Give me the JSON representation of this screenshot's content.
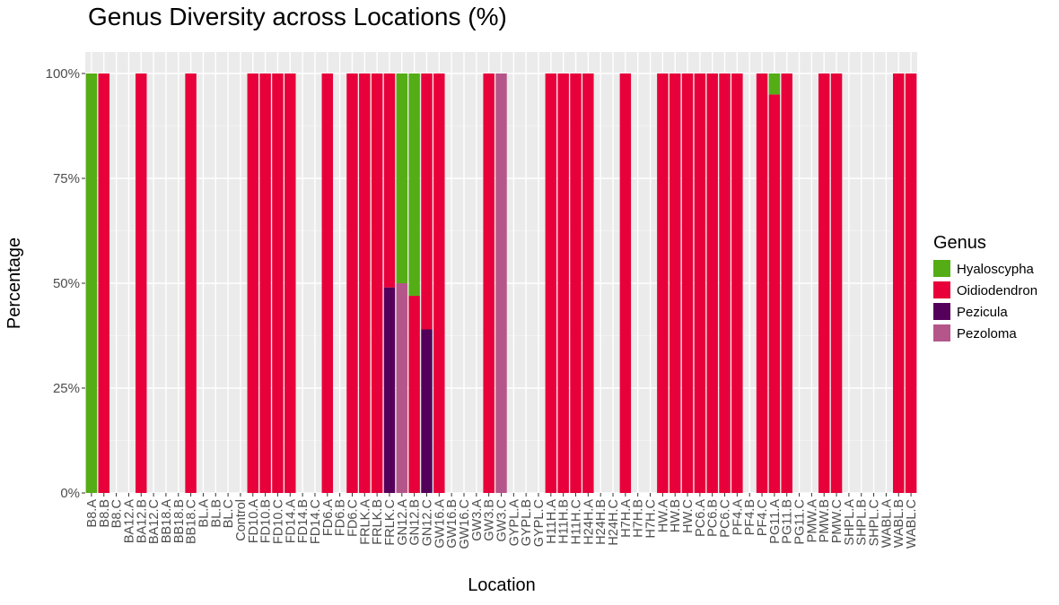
{
  "chart_data": {
    "type": "bar",
    "stacked": true,
    "title": "Genus Diversity across Locations (%)",
    "xlabel": "Location",
    "ylabel": "Percentage",
    "ylim": [
      0,
      100
    ],
    "yticks": [
      0,
      25,
      50,
      75,
      100
    ],
    "ytick_labels": [
      "0%",
      "25%",
      "50%",
      "75%",
      "100%"
    ],
    "grid": true,
    "legend": {
      "title": "Genus",
      "position": "right"
    },
    "categories": [
      "B8.A",
      "B8.B",
      "B8.C",
      "BA12.A",
      "BA12.B",
      "BA12.C",
      "BB18.A",
      "BB18.B",
      "BB18.C",
      "BL.A",
      "BL.B",
      "BL.C",
      "Control",
      "FD10.A",
      "FD10.B",
      "FD10.C",
      "FD14.A",
      "FD14.B",
      "FD14.C",
      "FD6.A",
      "FD6.B",
      "FD6.C",
      "FRLK.A",
      "FRLK.B",
      "FRLK.C",
      "GN12.A",
      "GN12.B",
      "GN12.C",
      "GW16.A",
      "GW16.B",
      "GW16.C",
      "GW3.A",
      "GW3.B",
      "GW3.C",
      "GYPL.A",
      "GYPL.B",
      "GYPL.C",
      "H11H.A",
      "H11H.B",
      "H11H.C",
      "H24H.A",
      "H24H.B",
      "H24H.C",
      "H7H.A",
      "H7H.B",
      "H7H.C",
      "HW.A",
      "HW.B",
      "HW.C",
      "PC6.A",
      "PC6.B",
      "PC6.C",
      "PF4.A",
      "PF4.B",
      "PF4.C",
      "PG11.A",
      "PG11.B",
      "PG11.C",
      "PMW.A",
      "PMW.B",
      "PMW.C",
      "SHPL.A",
      "SHPL.B",
      "SHPL.C",
      "WABL.A",
      "WABL.B",
      "WABL.C"
    ],
    "series": [
      {
        "name": "Pezoloma",
        "color": "#B5568A",
        "values": [
          0,
          0,
          0,
          0,
          0,
          0,
          0,
          0,
          0,
          0,
          0,
          0,
          0,
          0,
          0,
          0,
          0,
          0,
          0,
          0,
          0,
          0,
          0,
          0,
          0,
          50,
          0,
          0,
          0,
          0,
          0,
          0,
          0,
          100,
          0,
          0,
          0,
          0,
          0,
          0,
          0,
          0,
          0,
          0,
          0,
          0,
          0,
          0,
          0,
          0,
          0,
          0,
          0,
          0,
          0,
          0,
          0,
          0,
          0,
          0,
          0,
          0,
          0,
          0,
          0,
          0,
          0
        ]
      },
      {
        "name": "Pezicula",
        "color": "#54005A",
        "values": [
          0,
          0,
          0,
          0,
          0,
          0,
          0,
          0,
          0,
          0,
          0,
          0,
          0,
          0,
          0,
          0,
          0,
          0,
          0,
          0,
          0,
          0,
          0,
          0,
          49,
          0,
          0,
          39,
          0,
          0,
          0,
          0,
          0,
          0,
          0,
          0,
          0,
          0,
          0,
          0,
          0,
          0,
          0,
          0,
          0,
          0,
          0,
          0,
          0,
          0,
          0,
          0,
          0,
          0,
          0,
          0,
          0,
          0,
          0,
          0,
          0,
          0,
          0,
          0,
          0,
          0,
          0
        ]
      },
      {
        "name": "Oidiodendron",
        "color": "#E8003A",
        "values": [
          0,
          100,
          0,
          0,
          100,
          0,
          0,
          0,
          100,
          0,
          0,
          0,
          0,
          100,
          100,
          100,
          100,
          0,
          0,
          100,
          0,
          100,
          100,
          100,
          51,
          0,
          47,
          61,
          100,
          0,
          0,
          0,
          100,
          0,
          0,
          0,
          0,
          100,
          100,
          100,
          100,
          0,
          0,
          100,
          0,
          0,
          100,
          100,
          100,
          100,
          100,
          100,
          100,
          0,
          100,
          95,
          100,
          0,
          0,
          100,
          100,
          0,
          0,
          0,
          0,
          100,
          100
        ]
      },
      {
        "name": "Hyaloscypha",
        "color": "#55AD16",
        "values": [
          100,
          0,
          0,
          0,
          0,
          0,
          0,
          0,
          0,
          0,
          0,
          0,
          0,
          0,
          0,
          0,
          0,
          0,
          0,
          0,
          0,
          0,
          0,
          0,
          0,
          50,
          53,
          0,
          0,
          0,
          0,
          0,
          0,
          0,
          0,
          0,
          0,
          0,
          0,
          0,
          0,
          0,
          0,
          0,
          0,
          0,
          0,
          0,
          0,
          0,
          0,
          0,
          0,
          0,
          0,
          5,
          0,
          0,
          0,
          0,
          0,
          0,
          0,
          0,
          0,
          0,
          0
        ]
      }
    ],
    "legend_order": [
      "Hyaloscypha",
      "Oidiodendron",
      "Pezicula",
      "Pezoloma"
    ]
  }
}
